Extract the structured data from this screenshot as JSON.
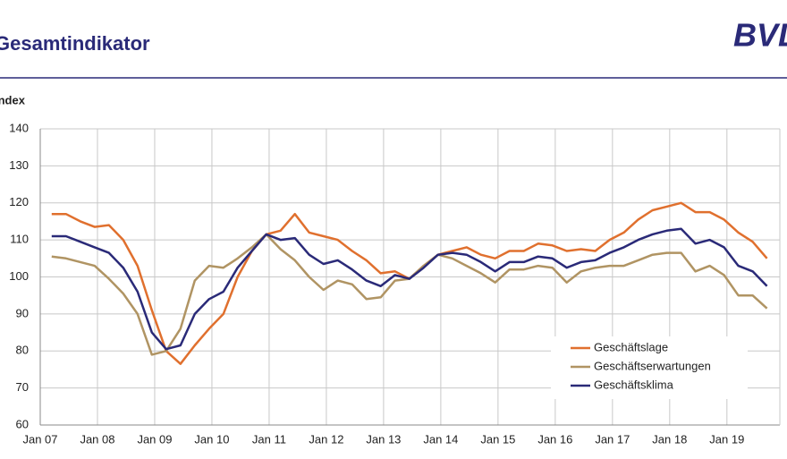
{
  "chart_data": {
    "type": "line",
    "title": "Gesamtindikator",
    "logo": "BVL",
    "y_label": "Index",
    "categories": [
      "Jan 07",
      null,
      null,
      null,
      "Jan 08",
      null,
      null,
      null,
      "Jan 09",
      null,
      null,
      null,
      "Jan 10",
      null,
      null,
      null,
      "Jan 11",
      null,
      null,
      null,
      "Jan 12",
      null,
      null,
      null,
      "Jan 13",
      null,
      null,
      null,
      "Jan 14",
      null,
      null,
      null,
      "Jan 15",
      null,
      null,
      null,
      "Jan 16",
      null,
      null,
      null,
      "Jan 17",
      null,
      null,
      null,
      "Jan 18",
      null,
      null,
      null,
      "Jan 19",
      null,
      null
    ],
    "series": [
      {
        "name": "Geschäftslage",
        "color": "#e0702e",
        "values": [
          117,
          117,
          115,
          113.5,
          114,
          110,
          103,
          91,
          80,
          76.5,
          81.5,
          86,
          90,
          100,
          107,
          111.5,
          112.5,
          117,
          112,
          111,
          110,
          107,
          104.5,
          101,
          101.5,
          99.5,
          103,
          106,
          107,
          108,
          106,
          105,
          107,
          107,
          109,
          108.5,
          107,
          107.5,
          107,
          110,
          112,
          115.5,
          118,
          119,
          120,
          117.5,
          117.5,
          115.5,
          112,
          109.5,
          105
        ]
      },
      {
        "name": "Geschäftserwartungen",
        "color": "#b09463",
        "values": [
          105.5,
          105,
          104,
          103,
          99.5,
          95.5,
          90,
          79,
          80,
          86,
          99,
          103,
          102.5,
          105,
          108,
          111.5,
          107.5,
          104.5,
          100,
          96.5,
          99,
          98,
          94,
          94.5,
          99,
          99.5,
          103,
          106,
          105,
          103,
          101,
          98.5,
          102,
          102,
          103,
          102.5,
          98.5,
          101.5,
          102.5,
          103,
          103,
          104.5,
          106,
          106.5,
          106.5,
          101.5,
          103,
          100.5,
          95,
          95,
          91.5
        ]
      },
      {
        "name": "Geschäftsklima",
        "color": "#2a2a78",
        "values": [
          111,
          111,
          109.5,
          108,
          106.5,
          102.5,
          96,
          85,
          80.5,
          81.5,
          90,
          94,
          96,
          102.5,
          107,
          111.5,
          110,
          110.5,
          106,
          103.5,
          104.5,
          102,
          99,
          97.5,
          100.5,
          99.5,
          102.5,
          106,
          106.5,
          106,
          104,
          101.5,
          104,
          104,
          105.5,
          105,
          102.5,
          104,
          104.5,
          106.5,
          108,
          110,
          111.5,
          112.5,
          113,
          109,
          110,
          108,
          103,
          101.5,
          97.5
        ]
      }
    ],
    "ylim": [
      60,
      140
    ],
    "yticks": [
      60,
      70,
      80,
      90,
      100,
      110,
      120,
      130,
      140
    ],
    "grid": true
  }
}
